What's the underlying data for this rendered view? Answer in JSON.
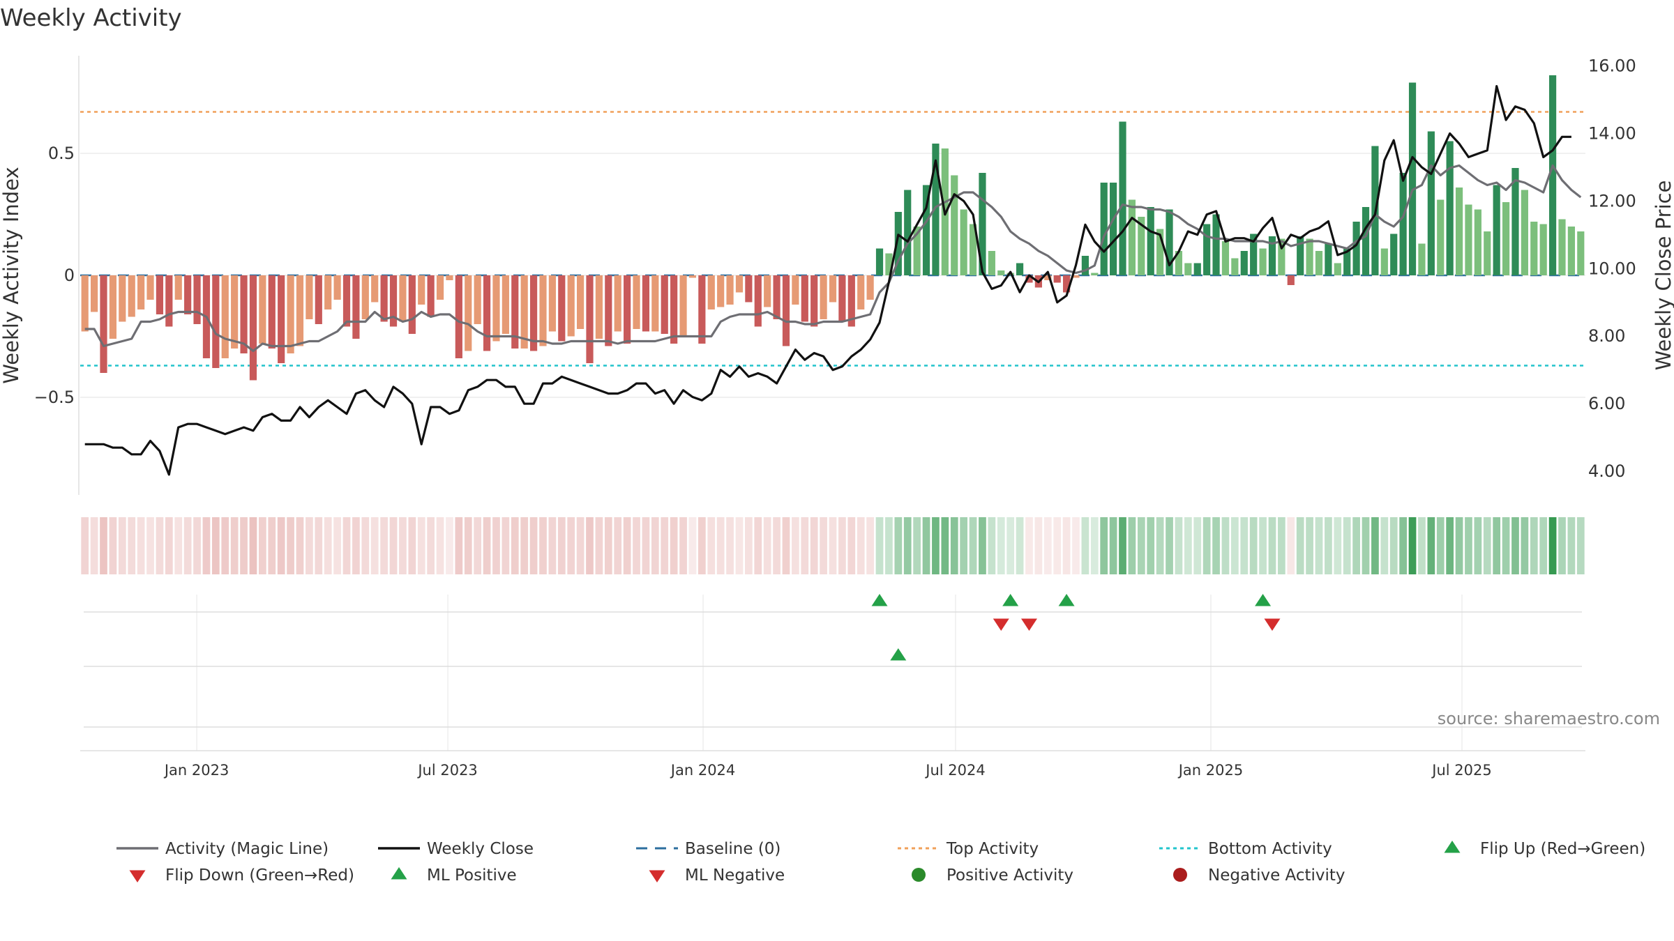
{
  "chart_data": {
    "type": "bar",
    "title": "Weekly Activity",
    "ylabel": "Weekly Activity Index",
    "y2label": "Weekly Close Price",
    "source": "source: sharemaestro.com",
    "ylim": [
      -0.9,
      0.9
    ],
    "y2lim": [
      3.3,
      16.3
    ],
    "yticks": [
      {
        "v": 0.5,
        "label": "0.5"
      },
      {
        "v": 0,
        "label": "0"
      },
      {
        "v": -0.5,
        "label": "−0.5"
      }
    ],
    "y2ticks": [
      {
        "v": 16,
        "label": "16.00"
      },
      {
        "v": 14,
        "label": "14.00"
      },
      {
        "v": 12,
        "label": "12.00"
      },
      {
        "v": 10,
        "label": "10.00"
      },
      {
        "v": 8,
        "label": "8.00"
      },
      {
        "v": 6,
        "label": "6.00"
      },
      {
        "v": 4,
        "label": "4.00"
      }
    ],
    "x_start": "2022-10-09",
    "x_end": "2025-09-28",
    "xticks": [
      {
        "date": "2023-01-01",
        "label": "Jan 2023"
      },
      {
        "date": "2023-07-01",
        "label": "Jul 2023"
      },
      {
        "date": "2024-01-01",
        "label": "Jan 2024"
      },
      {
        "date": "2024-07-01",
        "label": "Jul 2024"
      },
      {
        "date": "2025-01-01",
        "label": "Jan 2025"
      },
      {
        "date": "2025-07-01",
        "label": "Jul 2025"
      }
    ],
    "top_activity": 0.67,
    "bottom_activity": -0.37,
    "activity": [
      -0.23,
      -0.15,
      -0.4,
      -0.26,
      -0.19,
      -0.17,
      -0.14,
      -0.1,
      -0.16,
      -0.21,
      -0.1,
      -0.16,
      -0.2,
      -0.34,
      -0.38,
      -0.34,
      -0.3,
      -0.32,
      -0.43,
      -0.28,
      -0.3,
      -0.36,
      -0.32,
      -0.29,
      -0.18,
      -0.2,
      -0.14,
      -0.1,
      -0.21,
      -0.26,
      -0.18,
      -0.11,
      -0.19,
      -0.21,
      -0.19,
      -0.24,
      -0.12,
      -0.17,
      -0.1,
      -0.02,
      -0.34,
      -0.31,
      -0.2,
      -0.31,
      -0.27,
      -0.24,
      -0.3,
      -0.3,
      -0.31,
      -0.29,
      -0.23,
      -0.27,
      -0.25,
      -0.22,
      -0.36,
      -0.26,
      -0.29,
      -0.23,
      -0.28,
      -0.22,
      -0.23,
      -0.23,
      -0.24,
      -0.28,
      -0.25,
      -0.01,
      -0.28,
      -0.14,
      -0.13,
      -0.12,
      -0.07,
      -0.11,
      -0.21,
      -0.13,
      -0.18,
      -0.29,
      -0.12,
      -0.19,
      -0.21,
      -0.18,
      -0.11,
      -0.19,
      -0.21,
      -0.14,
      -0.1,
      0.11,
      0.09,
      0.26,
      0.35,
      0.2,
      0.37,
      0.54,
      0.52,
      0.41,
      0.27,
      0.21,
      0.42,
      0.1,
      0.02,
      0.01,
      0.05,
      -0.03,
      -0.05,
      -0.02,
      -0.03,
      -0.07,
      -0.01,
      0.08,
      0.01,
      0.38,
      0.38,
      0.63,
      0.31,
      0.24,
      0.28,
      0.19,
      0.27,
      0.1,
      0.05,
      0.05,
      0.21,
      0.25,
      0.14,
      0.07,
      0.1,
      0.17,
      0.11,
      0.16,
      0.15,
      -0.04,
      0.16,
      0.15,
      0.1,
      0.13,
      0.05,
      0.11,
      0.22,
      0.28,
      0.53,
      0.11,
      0.17,
      0.42,
      0.79,
      0.13,
      0.59,
      0.31,
      0.55,
      0.36,
      0.29,
      0.27,
      0.18,
      0.37,
      0.3,
      0.44,
      0.35,
      0.22,
      0.21,
      0.82,
      0.23,
      0.2,
      0.18
    ],
    "magic_line": [
      -0.22,
      -0.22,
      -0.29,
      -0.28,
      -0.27,
      -0.26,
      -0.19,
      -0.19,
      -0.18,
      -0.16,
      -0.15,
      -0.15,
      -0.15,
      -0.17,
      -0.24,
      -0.26,
      -0.27,
      -0.28,
      -0.31,
      -0.28,
      -0.29,
      -0.29,
      -0.29,
      -0.28,
      -0.27,
      -0.27,
      -0.25,
      -0.23,
      -0.19,
      -0.19,
      -0.19,
      -0.15,
      -0.18,
      -0.17,
      -0.19,
      -0.18,
      -0.15,
      -0.17,
      -0.16,
      -0.16,
      -0.19,
      -0.2,
      -0.23,
      -0.25,
      -0.25,
      -0.25,
      -0.25,
      -0.26,
      -0.27,
      -0.27,
      -0.28,
      -0.28,
      -0.27,
      -0.27,
      -0.27,
      -0.27,
      -0.27,
      -0.28,
      -0.27,
      -0.27,
      -0.27,
      -0.27,
      -0.26,
      -0.25,
      -0.25,
      -0.25,
      -0.25,
      -0.25,
      -0.19,
      -0.17,
      -0.16,
      -0.16,
      -0.16,
      -0.15,
      -0.17,
      -0.19,
      -0.19,
      -0.2,
      -0.2,
      -0.19,
      -0.19,
      -0.19,
      -0.18,
      -0.17,
      -0.16,
      -0.07,
      -0.03,
      0.06,
      0.13,
      0.17,
      0.22,
      0.28,
      0.3,
      0.32,
      0.34,
      0.34,
      0.31,
      0.28,
      0.24,
      0.18,
      0.15,
      0.13,
      0.1,
      0.08,
      0.05,
      0.02,
      0.01,
      0.02,
      0.04,
      0.16,
      0.23,
      0.29,
      0.28,
      0.28,
      0.27,
      0.27,
      0.26,
      0.24,
      0.21,
      0.19,
      0.16,
      0.15,
      0.15,
      0.14,
      0.14,
      0.14,
      0.14,
      0.13,
      0.14,
      0.12,
      0.13,
      0.14,
      0.14,
      0.13,
      0.12,
      0.11,
      0.14,
      0.16,
      0.25,
      0.22,
      0.2,
      0.24,
      0.35,
      0.37,
      0.45,
      0.41,
      0.44,
      0.45,
      0.42,
      0.39,
      0.37,
      0.38,
      0.35,
      0.39,
      0.38,
      0.36,
      0.34,
      0.45,
      0.39,
      0.35,
      0.32
    ],
    "weekly_close": [
      4.8,
      4.8,
      4.8,
      4.7,
      4.7,
      4.5,
      4.5,
      4.9,
      4.6,
      3.9,
      5.3,
      5.4,
      5.4,
      5.3,
      5.2,
      5.1,
      5.2,
      5.3,
      5.2,
      5.6,
      5.7,
      5.5,
      5.5,
      5.9,
      5.6,
      5.9,
      6.1,
      5.9,
      5.7,
      6.3,
      6.4,
      6.1,
      5.9,
      6.5,
      6.3,
      6.0,
      4.8,
      5.9,
      5.9,
      5.7,
      5.8,
      6.4,
      6.5,
      6.7,
      6.7,
      6.5,
      6.5,
      6.0,
      6.0,
      6.6,
      6.6,
      6.8,
      6.7,
      6.6,
      6.5,
      6.4,
      6.3,
      6.3,
      6.4,
      6.6,
      6.6,
      6.3,
      6.4,
      6.0,
      6.4,
      6.2,
      6.1,
      6.3,
      7.0,
      6.8,
      7.1,
      6.8,
      6.9,
      6.8,
      6.6,
      7.1,
      7.6,
      7.3,
      7.5,
      7.4,
      7.0,
      7.1,
      7.4,
      7.6,
      7.9,
      8.4,
      9.6,
      11.0,
      10.8,
      11.3,
      11.8,
      13.2,
      11.6,
      12.2,
      12.0,
      11.6,
      9.9,
      9.4,
      9.5,
      9.9,
      9.3,
      9.8,
      9.6,
      9.9,
      9.0,
      9.2,
      10.1,
      11.3,
      10.8,
      10.5,
      10.8,
      11.1,
      11.5,
      11.3,
      11.1,
      11.0,
      10.1,
      10.5,
      11.1,
      11.0,
      11.6,
      11.7,
      10.8,
      10.9,
      10.9,
      10.8,
      11.2,
      11.5,
      10.6,
      11.0,
      10.9,
      11.1,
      11.2,
      11.4,
      10.4,
      10.5,
      10.7,
      11.2,
      11.6,
      13.2,
      13.8,
      12.6,
      13.3,
      13.0,
      12.8,
      13.4,
      14.0,
      13.7,
      13.3,
      13.4,
      13.5,
      15.4,
      14.4,
      14.8,
      14.7,
      14.3,
      13.3,
      13.5,
      13.9,
      13.9
    ],
    "ml_positive_weeks": [
      85,
      99,
      105,
      126
    ],
    "ml_negative_weeks": [
      98,
      101,
      127
    ],
    "flip_up_weeks": [
      87
    ],
    "legend": [
      {
        "key": "magic",
        "label": "Activity (Magic Line)",
        "color": "#6e6e73"
      },
      {
        "key": "close",
        "label": "Weekly Close",
        "color": "#111111"
      },
      {
        "key": "baseline",
        "label": "Baseline (0)",
        "color": "#2c6e9e"
      },
      {
        "key": "top",
        "label": "Top Activity",
        "color": "#f0a05a"
      },
      {
        "key": "bottom",
        "label": "Bottom Activity",
        "color": "#22c4cc"
      },
      {
        "key": "flip_up",
        "label": "Flip Up (Red→Green)",
        "color": "#24a148"
      },
      {
        "key": "flip_down",
        "label": "Flip Down (Green→Red)",
        "color": "#d42d2d"
      },
      {
        "key": "ml_pos",
        "label": "ML Positive",
        "color": "#24a148"
      },
      {
        "key": "ml_neg",
        "label": "ML Negative",
        "color": "#d42d2d"
      },
      {
        "key": "pos_act",
        "label": "Positive Activity",
        "color": "#2a8a2a"
      },
      {
        "key": "neg_act",
        "label": "Negative Activity",
        "color": "#aa1c1c"
      }
    ]
  }
}
